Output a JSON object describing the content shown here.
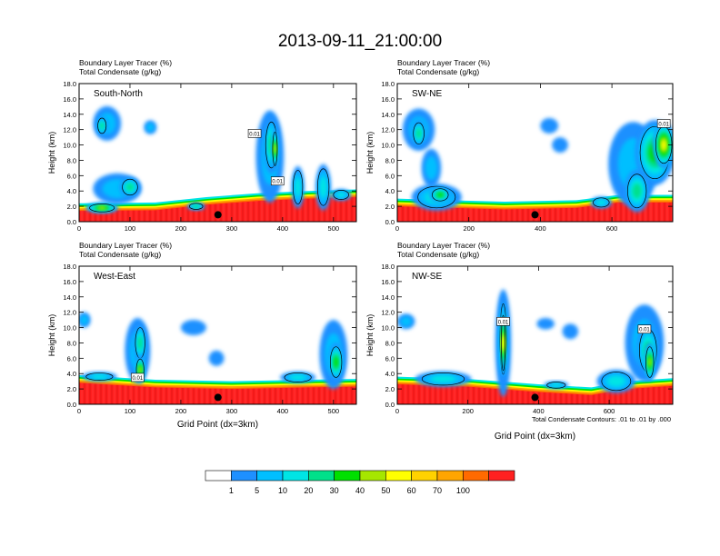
{
  "figure": {
    "title": "2013-09-11_21:00:00",
    "colorbar": {
      "colors": [
        "#ffffff",
        "#1e90ff",
        "#00bfff",
        "#00e5e5",
        "#00e08a",
        "#00e000",
        "#a6e600",
        "#ffff00",
        "#ffd200",
        "#ffa500",
        "#ff6a00",
        "#ff2020"
      ],
      "labels": [
        "1",
        "5",
        "10",
        "20",
        "30",
        "40",
        "50",
        "60",
        "70",
        "100"
      ]
    },
    "contour_note": "Total Condensate Contours: .01 to .01 by .000"
  },
  "chart_data": [
    {
      "type": "heatmap",
      "title": "South-North",
      "header_line1": "Boundary Layer Tracer   (%)",
      "header_line2": "Total Condensate   (g/kg)",
      "ylabel": "Height (km)",
      "xlabel": "",
      "xlim": [
        0,
        545
      ],
      "ylim": [
        0,
        18
      ],
      "xticks": [
        0,
        100,
        200,
        300,
        400,
        500
      ],
      "yticks": [
        "0.0",
        "2.0",
        "4.0",
        "6.0",
        "8.0",
        "10.0",
        "12.0",
        "14.0",
        "16.0",
        "18.0"
      ],
      "boundary_layer_top_km": [
        [
          0,
          1.4
        ],
        [
          150,
          1.5
        ],
        [
          250,
          2.2
        ],
        [
          350,
          2.7
        ],
        [
          450,
          3.0
        ],
        [
          545,
          3.2
        ]
      ],
      "marker": {
        "x": 273,
        "y": 0.9
      },
      "contour_labels": [
        {
          "text": "0.01",
          "x": 345,
          "y": 11.5
        },
        {
          "text": "0.01",
          "x": 390,
          "y": 5.3
        }
      ],
      "features": [
        {
          "x": 55,
          "y": 12.8,
          "w": 55,
          "h": 4.5,
          "level": 2
        },
        {
          "x": 45,
          "y": 12.5,
          "w": 22,
          "h": 2.5,
          "level": 4
        },
        {
          "x": 140,
          "y": 12.3,
          "w": 25,
          "h": 1.8,
          "level": 2
        },
        {
          "x": 75,
          "y": 4.3,
          "w": 95,
          "h": 4.0,
          "level": 2
        },
        {
          "x": 100,
          "y": 4.5,
          "w": 40,
          "h": 2.6,
          "level": 4
        },
        {
          "x": 45,
          "y": 1.8,
          "w": 65,
          "h": 1.3,
          "level": 6
        },
        {
          "x": 375,
          "y": 8.5,
          "w": 55,
          "h": 12.0,
          "level": 2
        },
        {
          "x": 378,
          "y": 10.0,
          "w": 30,
          "h": 7.5,
          "level": 4
        },
        {
          "x": 385,
          "y": 9.5,
          "w": 12,
          "h": 5.5,
          "level": 6
        },
        {
          "x": 430,
          "y": 4.5,
          "w": 25,
          "h": 5.5,
          "level": 3
        },
        {
          "x": 480,
          "y": 4.5,
          "w": 30,
          "h": 6.0,
          "level": 3
        },
        {
          "x": 515,
          "y": 3.5,
          "w": 40,
          "h": 1.5,
          "level": 3
        },
        {
          "x": 230,
          "y": 2.0,
          "w": 35,
          "h": 1.0,
          "level": 4
        }
      ]
    },
    {
      "type": "heatmap",
      "title": "SW-NE",
      "header_line1": "Boundary Layer Tracer   (%)",
      "header_line2": "Total Condensate   (g/kg)",
      "ylabel": "Height (km)",
      "xlabel": "",
      "xlim": [
        0,
        770
      ],
      "ylim": [
        0,
        18
      ],
      "xticks": [
        0,
        200,
        400,
        600
      ],
      "yticks": [
        "0.0",
        "2.0",
        "4.0",
        "6.0",
        "8.0",
        "10.0",
        "12.0",
        "14.0",
        "16.0",
        "18.0"
      ],
      "boundary_layer_top_km": [
        [
          0,
          2.0
        ],
        [
          150,
          1.8
        ],
        [
          300,
          1.6
        ],
        [
          500,
          1.8
        ],
        [
          620,
          2.5
        ],
        [
          770,
          2.5
        ]
      ],
      "marker": {
        "x": 385,
        "y": 0.9
      },
      "contour_labels": [
        {
          "text": "0.01",
          "x": 745,
          "y": 12.8
        }
      ],
      "features": [
        {
          "x": 60,
          "y": 12.0,
          "w": 90,
          "h": 5.5,
          "level": 2
        },
        {
          "x": 60,
          "y": 11.5,
          "w": 40,
          "h": 3.5,
          "level": 4
        },
        {
          "x": 95,
          "y": 7.0,
          "w": 55,
          "h": 5.0,
          "level": 2
        },
        {
          "x": 110,
          "y": 3.2,
          "w": 140,
          "h": 3.5,
          "level": 3
        },
        {
          "x": 120,
          "y": 3.5,
          "w": 60,
          "h": 2.0,
          "level": 5
        },
        {
          "x": 425,
          "y": 12.5,
          "w": 50,
          "h": 2.0,
          "level": 1
        },
        {
          "x": 455,
          "y": 10.0,
          "w": 45,
          "h": 2.0,
          "level": 1
        },
        {
          "x": 660,
          "y": 7.5,
          "w": 140,
          "h": 11.0,
          "level": 2
        },
        {
          "x": 720,
          "y": 9.0,
          "w": 110,
          "h": 8.5,
          "level": 5
        },
        {
          "x": 745,
          "y": 10.0,
          "w": 60,
          "h": 6.0,
          "level": 7
        },
        {
          "x": 670,
          "y": 4.0,
          "w": 70,
          "h": 5.5,
          "level": 4
        },
        {
          "x": 570,
          "y": 2.5,
          "w": 60,
          "h": 1.5,
          "level": 3
        }
      ]
    },
    {
      "type": "heatmap",
      "title": "West-East",
      "header_line1": "Boundary Layer Tracer   (%)",
      "header_line2": "Total Condensate   (g/kg)",
      "ylabel": "Height (km)",
      "xlabel": "Grid Point (dx=3km)",
      "xlim": [
        0,
        545
      ],
      "ylim": [
        0,
        18
      ],
      "xticks": [
        0,
        100,
        200,
        300,
        400,
        500
      ],
      "yticks": [
        "0.0",
        "2.0",
        "4.0",
        "6.0",
        "8.0",
        "10.0",
        "12.0",
        "14.0",
        "16.0",
        "18.0"
      ],
      "boundary_layer_top_km": [
        [
          0,
          2.8
        ],
        [
          150,
          2.2
        ],
        [
          300,
          2.0
        ],
        [
          450,
          2.2
        ],
        [
          545,
          2.3
        ]
      ],
      "marker": {
        "x": 273,
        "y": 0.9
      },
      "contour_labels": [
        {
          "text": "0.01",
          "x": 115,
          "y": 3.5
        }
      ],
      "features": [
        {
          "x": 10,
          "y": 11.0,
          "w": 25,
          "h": 2.0,
          "level": 2
        },
        {
          "x": 115,
          "y": 7.0,
          "w": 50,
          "h": 8.5,
          "level": 2
        },
        {
          "x": 120,
          "y": 8.0,
          "w": 25,
          "h": 5.0,
          "level": 4
        },
        {
          "x": 120,
          "y": 4.5,
          "w": 20,
          "h": 3.5,
          "level": 6
        },
        {
          "x": 40,
          "y": 3.6,
          "w": 70,
          "h": 1.2,
          "level": 3
        },
        {
          "x": 225,
          "y": 10.0,
          "w": 50,
          "h": 2.0,
          "level": 1
        },
        {
          "x": 270,
          "y": 6.0,
          "w": 30,
          "h": 2.0,
          "level": 1
        },
        {
          "x": 500,
          "y": 6.5,
          "w": 55,
          "h": 9.0,
          "level": 2
        },
        {
          "x": 505,
          "y": 5.5,
          "w": 30,
          "h": 5.0,
          "level": 5
        },
        {
          "x": 430,
          "y": 3.5,
          "w": 70,
          "h": 1.5,
          "level": 3
        }
      ]
    },
    {
      "type": "heatmap",
      "title": "NW-SE",
      "header_line1": "Boundary Layer Tracer   (%)",
      "header_line2": "Total Condensate   (g/kg)",
      "ylabel": "Height (km)",
      "xlabel": "Grid Point (dx=3km)",
      "xlim": [
        0,
        780
      ],
      "ylim": [
        0,
        18
      ],
      "xticks": [
        0,
        200,
        400,
        600
      ],
      "yticks": [
        "0.0",
        "2.0",
        "4.0",
        "6.0",
        "8.0",
        "10.0",
        "12.0",
        "14.0",
        "16.0",
        "18.0"
      ],
      "boundary_layer_top_km": [
        [
          0,
          2.6
        ],
        [
          200,
          2.3
        ],
        [
          400,
          1.6
        ],
        [
          550,
          1.2
        ],
        [
          650,
          2.0
        ],
        [
          780,
          2.4
        ]
      ],
      "marker": {
        "x": 390,
        "y": 0.9
      },
      "contour_labels": [
        {
          "text": "0.01",
          "x": 300,
          "y": 10.8
        },
        {
          "text": "0.01",
          "x": 700,
          "y": 9.8
        }
      ],
      "features": [
        {
          "x": 25,
          "y": 10.8,
          "w": 50,
          "h": 2.0,
          "level": 2
        },
        {
          "x": 300,
          "y": 8.0,
          "w": 45,
          "h": 14.0,
          "level": 2
        },
        {
          "x": 300,
          "y": 8.5,
          "w": 24,
          "h": 11.5,
          "level": 5
        },
        {
          "x": 300,
          "y": 8.0,
          "w": 10,
          "h": 9.0,
          "level": 7
        },
        {
          "x": 130,
          "y": 3.3,
          "w": 160,
          "h": 2.0,
          "level": 3
        },
        {
          "x": 420,
          "y": 10.5,
          "w": 50,
          "h": 1.5,
          "level": 1
        },
        {
          "x": 490,
          "y": 9.5,
          "w": 45,
          "h": 2.0,
          "level": 1
        },
        {
          "x": 700,
          "y": 8.0,
          "w": 110,
          "h": 10.0,
          "level": 2
        },
        {
          "x": 710,
          "y": 7.0,
          "w": 65,
          "h": 7.0,
          "level": 4
        },
        {
          "x": 715,
          "y": 5.5,
          "w": 30,
          "h": 5.0,
          "level": 6
        },
        {
          "x": 620,
          "y": 3.0,
          "w": 110,
          "h": 3.0,
          "level": 3
        },
        {
          "x": 450,
          "y": 2.5,
          "w": 70,
          "h": 1.0,
          "level": 3
        }
      ]
    }
  ]
}
